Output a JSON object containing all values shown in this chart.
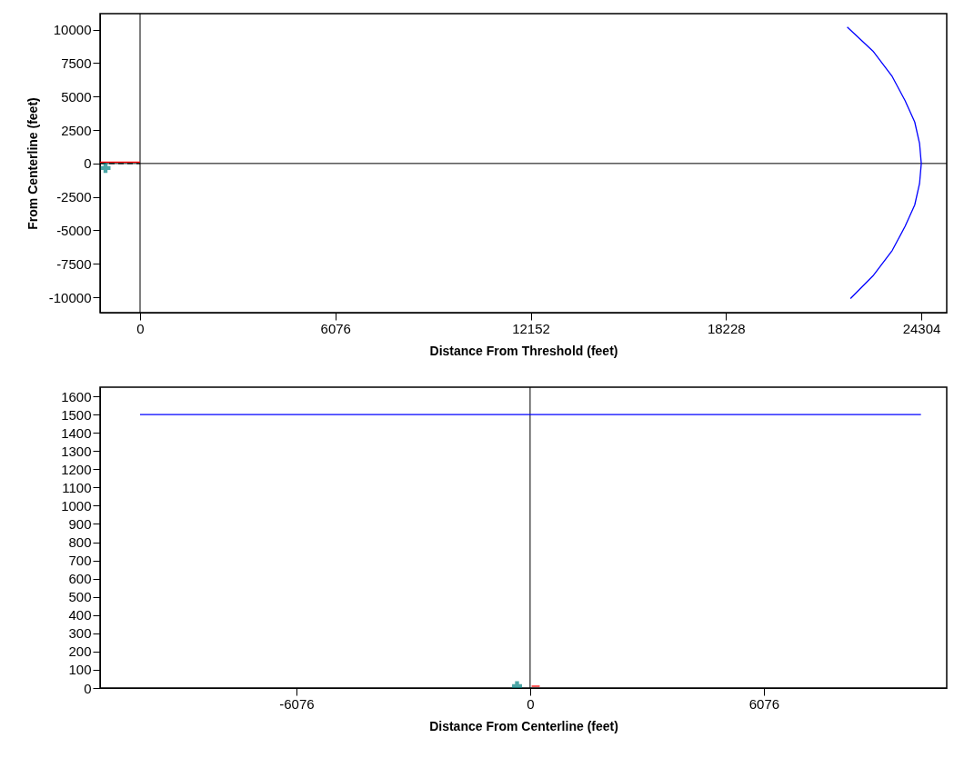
{
  "chart_data": [
    {
      "type": "line",
      "xlabel": "Distance From Threshold (feet)",
      "ylabel": "From Centerline (feet)",
      "xlim": [
        -1245,
        25095
      ],
      "ylim": [
        -11150,
        11200
      ],
      "xticks": [
        0,
        6076,
        12152,
        18228,
        24304
      ],
      "yticks": [
        -10000,
        -7500,
        -5000,
        -2500,
        0,
        2500,
        5000,
        7500,
        10000
      ],
      "grid": false,
      "ref_lines": [
        {
          "axis": "x",
          "value": 0,
          "color": "#000000"
        },
        {
          "axis": "y",
          "value": 0,
          "color": "#000000"
        }
      ],
      "series": [
        {
          "color": "#0000ff",
          "x": [
            22100,
            22800,
            23400,
            23800,
            24100,
            24250,
            24304,
            24250,
            24100,
            23800,
            23400,
            22800,
            22000
          ],
          "values": [
            -10100,
            -8400,
            -6500,
            -4700,
            -3100,
            -1500,
            0,
            1500,
            3100,
            4700,
            6500,
            8400,
            10200
          ]
        },
        {
          "color": "#ff0000",
          "x": [
            -1245,
            0
          ],
          "values": [
            100,
            100
          ]
        },
        {
          "color": "#000000",
          "line_style": "dashed",
          "x": [
            -1245,
            0
          ],
          "values": [
            0,
            0
          ]
        },
        {
          "type": "scatter",
          "marker": "cross",
          "color": "#008080",
          "x": [
            -1075
          ],
          "values": [
            -340
          ]
        }
      ]
    },
    {
      "type": "line",
      "xlabel": "Distance From Centerline (feet)",
      "xlim": [
        -11180,
        10830
      ],
      "ylim": [
        0,
        1650
      ],
      "xticks": [
        -6076,
        0,
        6076
      ],
      "yticks": [
        0,
        100,
        200,
        300,
        400,
        500,
        600,
        700,
        800,
        900,
        1000,
        1100,
        1200,
        1300,
        1400,
        1500,
        1600
      ],
      "grid": false,
      "ref_lines": [
        {
          "axis": "x",
          "value": 0,
          "color": "#000000"
        }
      ],
      "series": [
        {
          "color": "#0000ff",
          "x": [
            -10140,
            10160
          ],
          "values": [
            1500,
            1500
          ]
        },
        {
          "color": "#ff0000",
          "x": [
            40,
            250
          ],
          "values": [
            10,
            10
          ]
        },
        {
          "type": "scatter",
          "marker": "cross",
          "color": "#008080",
          "x": [
            -340
          ],
          "values": [
            10
          ]
        }
      ]
    }
  ]
}
